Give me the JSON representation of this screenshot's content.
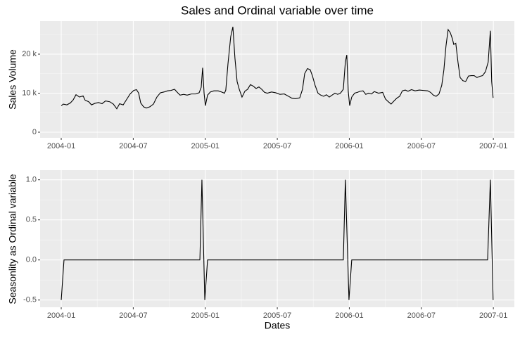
{
  "chart_data": [
    {
      "type": "line",
      "title": "Sales and Ordinal variable over time",
      "y_label": "Sales Volume",
      "color": "#000000",
      "grid": true,
      "x": [
        0,
        0.18,
        0.47,
        0.76,
        1.0,
        1.23,
        1.52,
        1.82,
        1.99,
        2.29,
        2.52,
        2.81,
        3.11,
        3.4,
        3.69,
        4.04,
        4.34,
        4.63,
        4.86,
        5.16,
        5.45,
        5.74,
        6.04,
        6.27,
        6.45,
        6.62,
        6.86,
        7.09,
        7.38,
        7.68,
        7.97,
        8.26,
        8.56,
        8.85,
        9.14,
        9.44,
        9.67,
        9.9,
        10.2,
        10.49,
        10.84,
        11.19,
        11.49,
        11.66,
        11.78,
        11.9,
        12.01,
        12.19,
        12.42,
        12.72,
        13.07,
        13.36,
        13.6,
        13.71,
        13.89,
        14.12,
        14.3,
        14.47,
        14.65,
        14.83,
        15.06,
        15.3,
        15.53,
        15.76,
        16.0,
        16.23,
        16.47,
        16.7,
        16.94,
        17.17,
        17.52,
        17.87,
        18.22,
        18.58,
        18.93,
        19.22,
        19.51,
        19.87,
        20.1,
        20.28,
        20.51,
        20.74,
        20.92,
        21.15,
        21.39,
        21.62,
        21.86,
        22.09,
        22.33,
        22.56,
        22.8,
        23.03,
        23.26,
        23.5,
        23.67,
        23.79,
        23.91,
        24.03,
        24.2,
        24.44,
        24.67,
        24.91,
        25.14,
        25.37,
        25.61,
        25.84,
        26.08,
        26.43,
        26.78,
        27.01,
        27.25,
        27.48,
        27.72,
        27.95,
        28.19,
        28.42,
        28.66,
        28.89,
        29.18,
        29.48,
        29.83,
        30.18,
        30.53,
        30.77,
        31.0,
        31.23,
        31.47,
        31.7,
        31.88,
        32.05,
        32.23,
        32.41,
        32.58,
        32.7,
        32.87,
        33.05,
        33.23,
        33.46,
        33.69,
        33.93,
        34.16,
        34.4,
        34.63,
        34.87,
        35.1,
        35.34,
        35.57,
        35.75,
        35.86,
        35.98
      ],
      "values": [
        6800,
        7200,
        7000,
        7500,
        8300,
        9600,
        9000,
        9300,
        8200,
        7800,
        7000,
        7400,
        7600,
        7300,
        8000,
        7800,
        7200,
        6000,
        7300,
        7000,
        8400,
        9800,
        10700,
        10900,
        10000,
        7500,
        6500,
        6200,
        6500,
        7200,
        9000,
        10100,
        10300,
        10600,
        10700,
        11000,
        10200,
        9500,
        9700,
        9500,
        9800,
        9800,
        10100,
        11500,
        16500,
        10000,
        6800,
        9500,
        10300,
        10600,
        10600,
        10300,
        10000,
        10800,
        17500,
        24500,
        27000,
        19000,
        13000,
        11000,
        9000,
        10500,
        11000,
        12200,
        11800,
        11200,
        11600,
        11000,
        10200,
        10000,
        10300,
        10100,
        9700,
        9800,
        9200,
        8700,
        8600,
        8800,
        11000,
        15000,
        16300,
        16000,
        14500,
        12000,
        10000,
        9500,
        9200,
        9600,
        9000,
        9500,
        10000,
        9700,
        10000,
        11000,
        18000,
        19800,
        10500,
        6800,
        9000,
        10000,
        10200,
        10500,
        10600,
        9700,
        10000,
        9800,
        10400,
        10000,
        10200,
        8500,
        7800,
        7200,
        8000,
        8700,
        9200,
        10600,
        10800,
        10500,
        10900,
        10600,
        10800,
        10700,
        10600,
        10200,
        9500,
        9200,
        9800,
        12000,
        16000,
        22000,
        26300,
        25500,
        24000,
        22500,
        22800,
        18000,
        14000,
        13200,
        13000,
        14400,
        14500,
        14500,
        14000,
        14300,
        14500,
        15500,
        18000,
        26000,
        13000,
        8800
      ],
      "xlim": [
        -1.76,
        37.75
      ],
      "xticks": [
        {
          "value": 0,
          "label": "2004-01"
        },
        {
          "value": 6,
          "label": "2004-07"
        },
        {
          "value": 12,
          "label": "2005-01"
        },
        {
          "value": 18,
          "label": "2005-07"
        },
        {
          "value": 24,
          "label": "2006-01"
        },
        {
          "value": 30,
          "label": "2006-07"
        },
        {
          "value": 36,
          "label": "2007-01"
        }
      ],
      "ylim": [
        -1440,
        28470
      ],
      "yticks": [
        0,
        {
          "value": 10000,
          "label": "10 k"
        },
        {
          "value": 20000,
          "label": "20 k"
        }
      ]
    },
    {
      "type": "line",
      "y_label": "Seasonlity as Ordinal variable",
      "x_label": "Dates",
      "color": "#000000",
      "grid": true,
      "x": [
        0,
        0.23,
        11.55,
        11.72,
        11.96,
        12.19,
        23.5,
        23.67,
        23.97,
        24.2,
        35.52,
        35.75,
        35.98
      ],
      "values": [
        -0.5,
        0,
        0,
        1,
        -0.5,
        0,
        0,
        1,
        -0.5,
        0,
        0,
        1,
        -0.5
      ],
      "xlim": [
        -1.76,
        37.75
      ],
      "xticks": [
        {
          "value": 0,
          "label": "2004-01"
        },
        {
          "value": 6,
          "label": "2004-07"
        },
        {
          "value": 12,
          "label": "2005-01"
        },
        {
          "value": 18,
          "label": "2005-07"
        },
        {
          "value": 24,
          "label": "2006-01"
        },
        {
          "value": 30,
          "label": "2006-07"
        },
        {
          "value": 36,
          "label": "2007-01"
        }
      ],
      "ylim": [
        -0.59,
        1.12
      ],
      "yticks": [
        -0.5,
        {
          "value": 0,
          "label": "0.0"
        },
        0.5,
        {
          "value": 1,
          "label": "1.0"
        }
      ]
    }
  ]
}
